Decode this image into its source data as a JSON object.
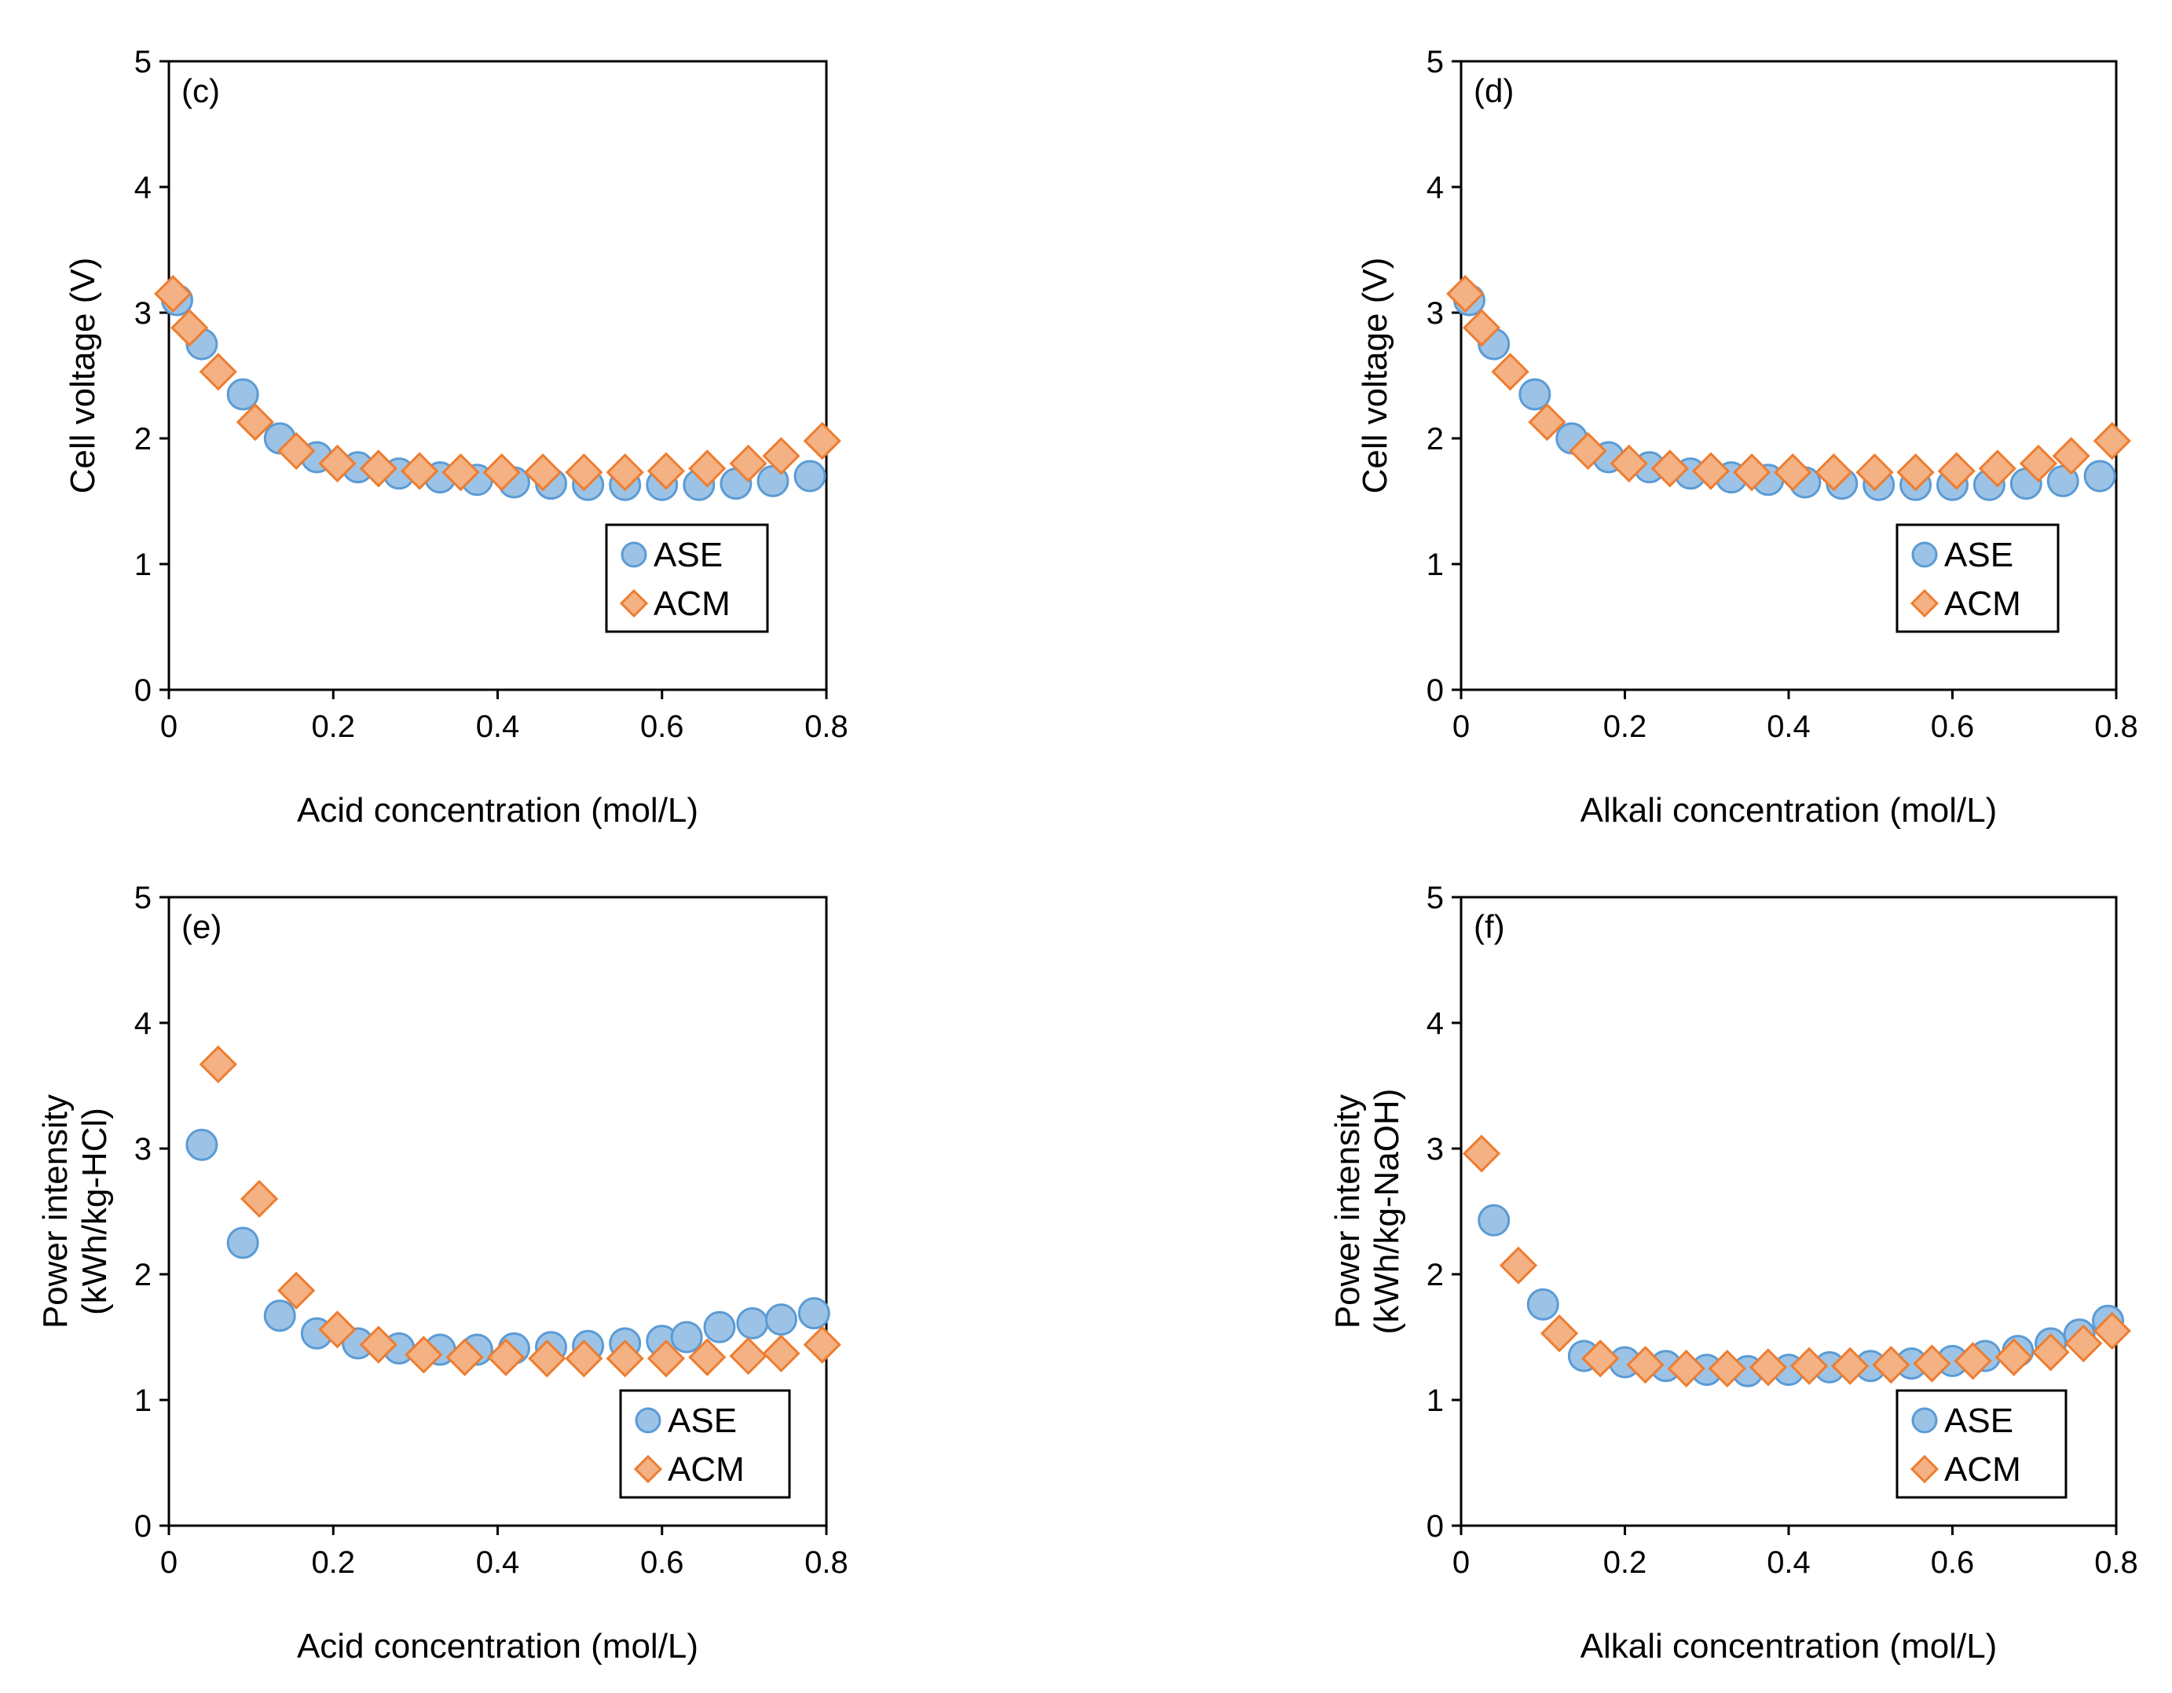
{
  "colors": {
    "ASE_fill": "#9cc3e5",
    "ASE_stroke": "#5b9bd5",
    "ACM_fill": "#f4b183",
    "ACM_stroke": "#ed7d31"
  },
  "chart_data": [
    {
      "type": "scatter",
      "panel_label": "(c)",
      "xlabel": "Acid concentration (mol/L)",
      "ylabel": [
        "Cell voltage (V)"
      ],
      "xlim": [
        0,
        0.8
      ],
      "ylim": [
        0,
        5
      ],
      "xticks": [
        "0",
        "0.2",
        "0.4",
        "0.6",
        "0.8"
      ],
      "yticks": [
        "0",
        "1",
        "2",
        "3",
        "4",
        "5"
      ],
      "legend_position": "lower-right",
      "series": [
        {
          "name": "ASE",
          "marker": "circle",
          "x": [
            0.01,
            0.04,
            0.09,
            0.135,
            0.18,
            0.23,
            0.28,
            0.33,
            0.375,
            0.42,
            0.465,
            0.51,
            0.555,
            0.6,
            0.645,
            0.69,
            0.735,
            0.78
          ],
          "y": [
            3.1,
            2.75,
            2.35,
            2.0,
            1.85,
            1.77,
            1.72,
            1.69,
            1.67,
            1.65,
            1.64,
            1.63,
            1.63,
            1.63,
            1.63,
            1.64,
            1.66,
            1.7
          ]
        },
        {
          "name": "ACM",
          "marker": "diamond",
          "x": [
            0.005,
            0.025,
            0.06,
            0.105,
            0.155,
            0.205,
            0.255,
            0.305,
            0.355,
            0.405,
            0.455,
            0.505,
            0.555,
            0.605,
            0.655,
            0.705,
            0.745,
            0.795
          ],
          "y": [
            3.15,
            2.88,
            2.53,
            2.13,
            1.9,
            1.8,
            1.76,
            1.74,
            1.73,
            1.73,
            1.73,
            1.73,
            1.73,
            1.74,
            1.76,
            1.8,
            1.86,
            1.98
          ]
        }
      ]
    },
    {
      "type": "scatter",
      "panel_label": "(d)",
      "xlabel": "Alkali concentration (mol/L)",
      "ylabel": [
        "Cell voltage (V)"
      ],
      "xlim": [
        0,
        0.8
      ],
      "ylim": [
        0,
        5
      ],
      "xticks": [
        "0",
        "0.2",
        "0.4",
        "0.6",
        "0.8"
      ],
      "yticks": [
        "0",
        "1",
        "2",
        "3",
        "4",
        "5"
      ],
      "legend_position": "lower-right",
      "series": [
        {
          "name": "ASE",
          "marker": "circle",
          "x": [
            0.01,
            0.04,
            0.09,
            0.135,
            0.18,
            0.23,
            0.28,
            0.33,
            0.375,
            0.42,
            0.465,
            0.51,
            0.555,
            0.6,
            0.645,
            0.69,
            0.735,
            0.78
          ],
          "y": [
            3.1,
            2.75,
            2.35,
            2.0,
            1.85,
            1.77,
            1.72,
            1.69,
            1.67,
            1.65,
            1.64,
            1.63,
            1.63,
            1.63,
            1.63,
            1.64,
            1.66,
            1.7
          ]
        },
        {
          "name": "ACM",
          "marker": "diamond",
          "x": [
            0.005,
            0.025,
            0.06,
            0.105,
            0.155,
            0.205,
            0.255,
            0.305,
            0.355,
            0.405,
            0.455,
            0.505,
            0.555,
            0.605,
            0.655,
            0.705,
            0.745,
            0.795
          ],
          "y": [
            3.15,
            2.88,
            2.53,
            2.13,
            1.9,
            1.8,
            1.76,
            1.74,
            1.73,
            1.73,
            1.73,
            1.73,
            1.73,
            1.74,
            1.76,
            1.8,
            1.86,
            1.98
          ]
        }
      ]
    },
    {
      "type": "scatter",
      "panel_label": "(e)",
      "xlabel": "Acid concentration (mol/L)",
      "ylabel": [
        "Power intensity",
        "(kWh/kg-HCl)"
      ],
      "xlim": [
        0,
        0.8
      ],
      "ylim": [
        0,
        5
      ],
      "xticks": [
        "0",
        "0.2",
        "0.4",
        "0.6",
        "0.8"
      ],
      "yticks": [
        "0",
        "1",
        "2",
        "3",
        "4",
        "5"
      ],
      "legend_position": "lower-right",
      "series": [
        {
          "name": "ASE",
          "marker": "circle",
          "x": [
            0.04,
            0.09,
            0.135,
            0.18,
            0.23,
            0.28,
            0.33,
            0.375,
            0.42,
            0.465,
            0.51,
            0.555,
            0.6,
            0.63,
            0.67,
            0.71,
            0.745,
            0.785
          ],
          "y": [
            3.03,
            2.25,
            1.67,
            1.53,
            1.45,
            1.41,
            1.4,
            1.4,
            1.41,
            1.42,
            1.43,
            1.45,
            1.47,
            1.5,
            1.58,
            1.61,
            1.64,
            1.69
          ]
        },
        {
          "name": "ACM",
          "marker": "diamond",
          "x": [
            0.06,
            0.11,
            0.155,
            0.205,
            0.255,
            0.31,
            0.36,
            0.41,
            0.46,
            0.505,
            0.555,
            0.605,
            0.655,
            0.705,
            0.745,
            0.795
          ],
          "y": [
            3.67,
            2.6,
            1.87,
            1.56,
            1.44,
            1.36,
            1.34,
            1.34,
            1.33,
            1.33,
            1.33,
            1.33,
            1.34,
            1.35,
            1.37,
            1.44
          ]
        }
      ]
    },
    {
      "type": "scatter",
      "panel_label": "(f)",
      "xlabel": "Alkali concentration (mol/L)",
      "ylabel": [
        "Power intensity",
        "(kWh/kg-NaOH)"
      ],
      "xlim": [
        0,
        0.8
      ],
      "ylim": [
        0,
        5
      ],
      "xticks": [
        "0",
        "0.2",
        "0.4",
        "0.6",
        "0.8"
      ],
      "yticks": [
        "0",
        "1",
        "2",
        "3",
        "4",
        "5"
      ],
      "legend_position": "lower-right",
      "series": [
        {
          "name": "ASE",
          "marker": "circle",
          "x": [
            0.04,
            0.1,
            0.15,
            0.2,
            0.25,
            0.3,
            0.35,
            0.4,
            0.45,
            0.5,
            0.55,
            0.6,
            0.64,
            0.68,
            0.72,
            0.755,
            0.79
          ],
          "y": [
            2.43,
            1.76,
            1.35,
            1.3,
            1.27,
            1.24,
            1.23,
            1.24,
            1.26,
            1.27,
            1.29,
            1.31,
            1.35,
            1.39,
            1.45,
            1.52,
            1.63
          ]
        },
        {
          "name": "ACM",
          "marker": "diamond",
          "x": [
            0.025,
            0.07,
            0.12,
            0.17,
            0.225,
            0.275,
            0.325,
            0.375,
            0.425,
            0.475,
            0.525,
            0.575,
            0.625,
            0.675,
            0.72,
            0.76,
            0.795
          ],
          "y": [
            2.96,
            2.07,
            1.53,
            1.33,
            1.28,
            1.25,
            1.25,
            1.26,
            1.27,
            1.27,
            1.28,
            1.29,
            1.31,
            1.34,
            1.38,
            1.45,
            1.55
          ]
        }
      ]
    }
  ]
}
